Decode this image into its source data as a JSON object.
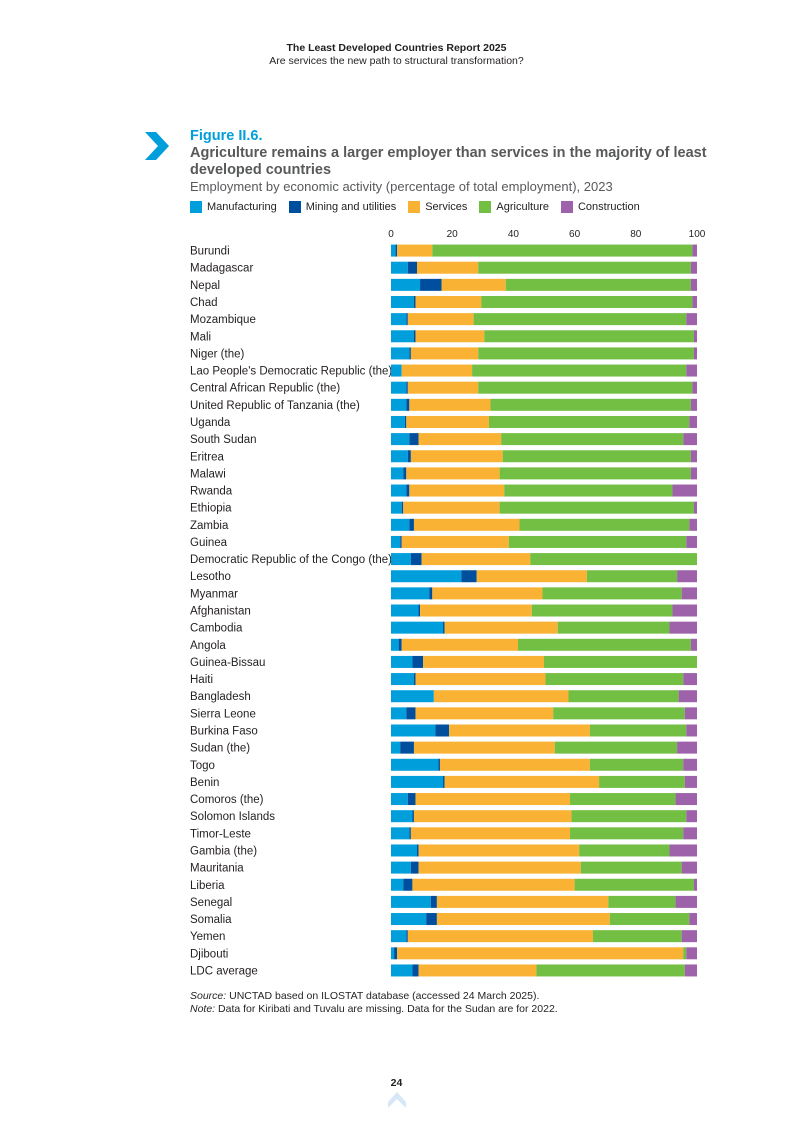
{
  "header": {
    "title": "The Least Developed Countries Report 2025",
    "subtitle": "Are services the new path to structural transformation?"
  },
  "figure": {
    "label": "Figure II.6.",
    "title": "Agriculture remains a larger employer than services in the majority of least developed countries",
    "subtitle": "Employment by economic activity (percentage of total employment), 2023"
  },
  "legend": [
    {
      "name": "Manufacturing",
      "color": "#009edb"
    },
    {
      "name": "Mining and utilities",
      "color": "#004f9f"
    },
    {
      "name": "Services",
      "color": "#f9b233"
    },
    {
      "name": "Agriculture",
      "color": "#72bf44"
    },
    {
      "name": "Construction",
      "color": "#9e62ab"
    }
  ],
  "chart_data": {
    "type": "bar",
    "orientation": "horizontal",
    "stacked": true,
    "xlim": [
      0,
      100
    ],
    "xticks": [
      "0",
      "20",
      "40",
      "60",
      "80",
      "100"
    ],
    "categories": [
      "Burundi",
      "Madagascar",
      "Nepal",
      "Chad",
      "Mozambique",
      "Mali",
      "Niger (the)",
      "Lao People's Democratic Republic (the)",
      "Central African Republic (the)",
      "United Republic of Tanzania (the)",
      "Uganda",
      "South Sudan",
      "Eritrea",
      "Malawi",
      "Rwanda",
      "Ethiopia",
      "Zambia",
      "Guinea",
      "Democratic Republic of the Congo (the)",
      "Lesotho",
      "Myanmar",
      "Afghanistan",
      "Cambodia",
      "Angola",
      "Guinea-Bissau",
      "Haiti",
      "Bangladesh",
      "Sierra Leone",
      "Burkina Faso",
      "Sudan (the)",
      "Togo",
      "Benin",
      "Comoros (the)",
      "Solomon Islands",
      "Timor-Leste",
      "Gambia (the)",
      "Mauritania",
      "Liberia",
      "Senegal",
      "Somalia",
      "Yemen",
      "Djibouti",
      "LDC average"
    ],
    "series": [
      {
        "name": "Manufacturing",
        "color": "#009edb",
        "values": [
          1.5,
          5.5,
          9.5,
          7.5,
          5.0,
          7.5,
          6.0,
          3.5,
          5.0,
          5.0,
          4.5,
          6.0,
          5.5,
          4.0,
          5.0,
          3.5,
          6.0,
          3.0,
          6.5,
          23.0,
          12.5,
          9.0,
          17.0,
          2.5,
          7.0,
          7.5,
          14.0,
          5.0,
          14.5,
          3.0,
          15.5,
          17.0,
          5.5,
          7.0,
          6.0,
          8.5,
          6.5,
          4.0,
          13.0,
          11.5,
          5.0,
          1.0,
          7.0
        ]
      },
      {
        "name": "Mining and utilities",
        "color": "#004f9f",
        "values": [
          0.5,
          3.0,
          7.0,
          0.5,
          0.5,
          0.5,
          0.5,
          0.0,
          0.5,
          1.0,
          0.5,
          3.0,
          1.0,
          1.0,
          1.0,
          0.5,
          1.5,
          0.5,
          3.5,
          5.0,
          1.0,
          0.5,
          0.5,
          1.0,
          3.5,
          0.5,
          0.0,
          3.0,
          4.5,
          4.5,
          0.5,
          0.5,
          2.5,
          0.5,
          0.5,
          0.5,
          2.5,
          3.0,
          2.0,
          3.5,
          0.5,
          1.0,
          2.0
        ]
      },
      {
        "name": "Services",
        "color": "#f9b233",
        "values": [
          11.5,
          20.0,
          21.0,
          21.5,
          21.5,
          22.5,
          22.0,
          23.0,
          23.0,
          26.5,
          27.0,
          27.0,
          30.0,
          30.5,
          31.0,
          31.5,
          34.5,
          35.0,
          35.5,
          36.0,
          36.0,
          36.5,
          37.0,
          38.0,
          39.5,
          42.5,
          44.0,
          45.0,
          46.0,
          46.0,
          49.0,
          50.5,
          50.5,
          51.5,
          52.0,
          52.5,
          53.0,
          53.0,
          56.0,
          56.5,
          60.5,
          93.5,
          38.5
        ]
      },
      {
        "name": "Agriculture",
        "color": "#72bf44",
        "values": [
          85.0,
          69.5,
          60.5,
          69.0,
          69.5,
          68.5,
          70.5,
          70.0,
          70.0,
          65.5,
          65.5,
          59.5,
          61.5,
          62.5,
          55.0,
          63.5,
          55.5,
          58.0,
          54.5,
          29.5,
          45.5,
          46.0,
          36.5,
          56.5,
          50.0,
          45.0,
          36.0,
          43.0,
          31.5,
          40.0,
          30.5,
          28.0,
          34.5,
          37.5,
          37.0,
          29.5,
          33.0,
          39.0,
          22.0,
          26.0,
          29.0,
          1.0,
          48.5
        ]
      },
      {
        "name": "Construction",
        "color": "#9e62ab",
        "values": [
          1.5,
          2.0,
          2.0,
          1.5,
          3.5,
          1.0,
          1.0,
          3.5,
          1.5,
          2.0,
          2.5,
          4.5,
          2.0,
          2.0,
          8.0,
          1.0,
          2.5,
          3.5,
          0.0,
          6.5,
          5.0,
          8.0,
          9.0,
          2.0,
          0.0,
          4.5,
          6.0,
          4.0,
          3.5,
          6.5,
          4.5,
          4.0,
          7.0,
          3.5,
          4.5,
          9.0,
          5.0,
          1.0,
          7.0,
          2.5,
          5.0,
          3.5,
          4.0
        ]
      }
    ]
  },
  "notes": {
    "source_label": "Source:",
    "source_text": " UNCTAD based on ILOSTAT database (accessed 24 March 2025).",
    "note_label": "Note:",
    "note_text": " Data for Kiribati and Tuvalu are missing. Data for the Sudan are for 2022."
  },
  "page_number": "24"
}
